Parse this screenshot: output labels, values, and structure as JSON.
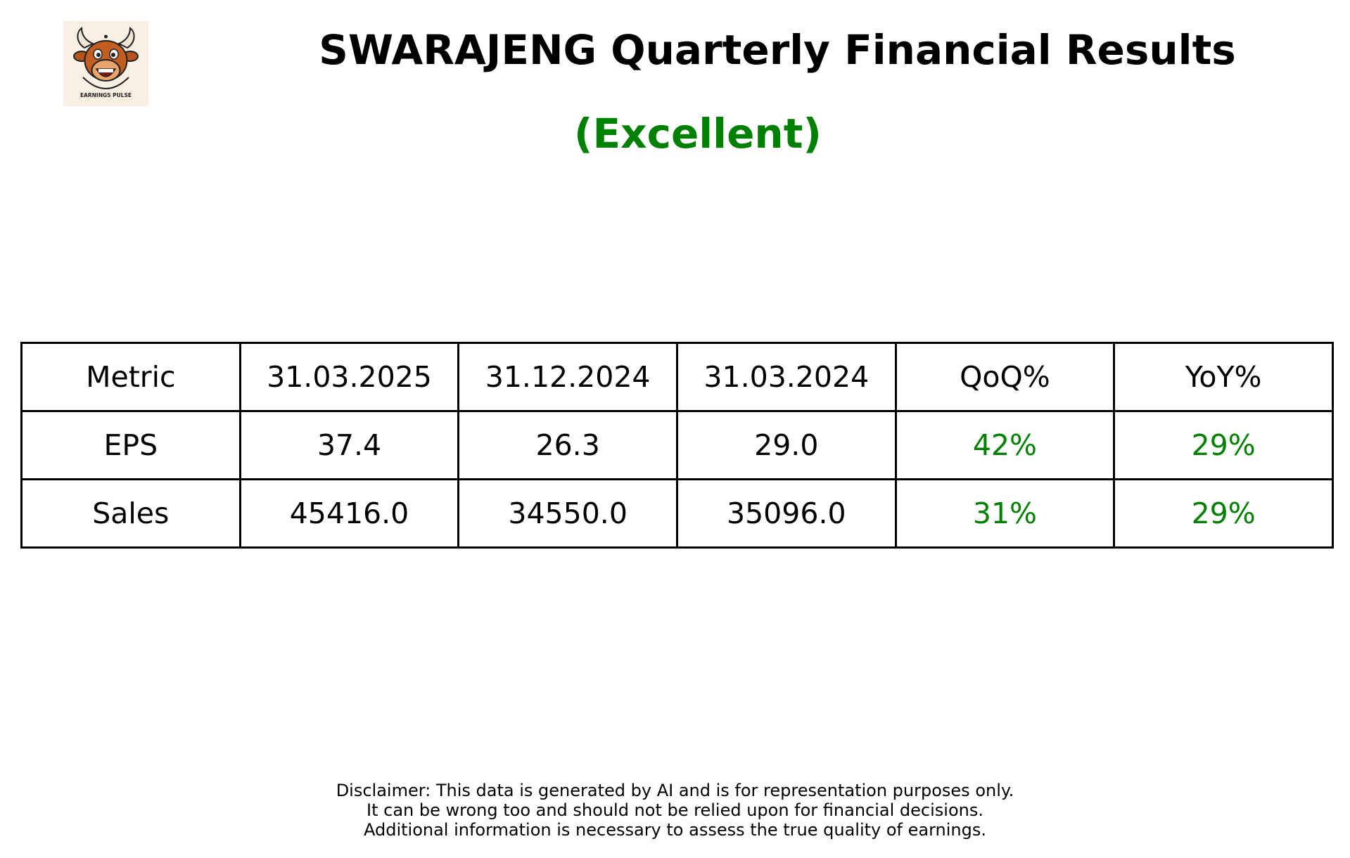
{
  "logo": {
    "icon": "bull-mascot-icon",
    "caption": "EARNINGS PULSE"
  },
  "title": "SWARAJENG Quarterly Financial Results",
  "rating": {
    "label": "(Excellent)",
    "color": "#008000"
  },
  "table": {
    "headers": [
      "Metric",
      "31.03.2025",
      "31.12.2024",
      "31.03.2024",
      "QoQ%",
      "YoY%"
    ],
    "rows": [
      {
        "metric": "EPS",
        "q1": "37.4",
        "q2": "26.3",
        "q3": "29.0",
        "qoq": "42%",
        "yoy": "29%"
      },
      {
        "metric": "Sales",
        "q1": "45416.0",
        "q2": "34550.0",
        "q3": "35096.0",
        "qoq": "31%",
        "yoy": "29%"
      }
    ],
    "positive_color": "#008000"
  },
  "disclaimer": [
    "Disclaimer: This data is generated by AI and is for representation purposes only.",
    "It can be wrong too and should not be relied upon for financial decisions.",
    "Additional information is necessary to assess the true quality of earnings."
  ]
}
